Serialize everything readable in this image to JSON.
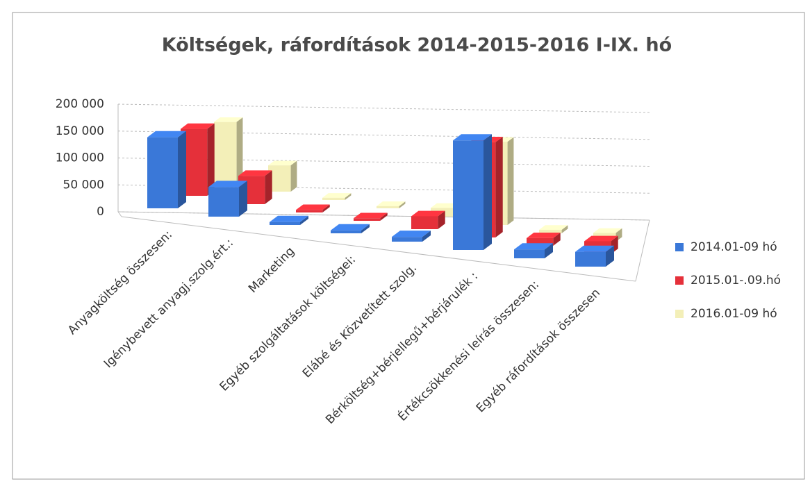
{
  "chart_data": {
    "type": "bar3d",
    "title": "Költségek, ráfordítások 2014-2015-2016 I-IX. hó",
    "categories": [
      "Anyagköltség összesen:",
      "Igénybevett anyagj.szolg.ért.:",
      "Marketing",
      "Egyéb szolgáltatások költségei:",
      "Elábé és Közvetített szolg.",
      "Bérköltség+bérjellegű+bérjárulék :",
      "Értékcsökkenési leírás összesen:",
      "Egyéb ráfordítások összesen"
    ],
    "series": [
      {
        "name": "2014.01-09 hó",
        "color": "#3a78d8",
        "values": [
          120000,
          50000,
          5000,
          5000,
          8000,
          185000,
          15000,
          25000
        ]
      },
      {
        "name": "2015.01-.09.hó",
        "color": "#e5303a",
        "values": [
          130000,
          55000,
          5000,
          5000,
          25000,
          185000,
          15000,
          25000
        ]
      },
      {
        "name": "2016.01-09 hó",
        "color": "#f3efb8",
        "values": [
          140000,
          60000,
          5000,
          5000,
          20000,
          190000,
          8000,
          20000
        ]
      }
    ],
    "ylim": [
      0,
      200000
    ],
    "yticks": [
      {
        "value": 0,
        "label": "0"
      },
      {
        "value": 50000,
        "label": "50 000"
      },
      {
        "value": 100000,
        "label": "100 000"
      },
      {
        "value": 150000,
        "label": "150 000"
      },
      {
        "value": 200000,
        "label": "200 000"
      }
    ],
    "grid": true,
    "legend": "right"
  }
}
